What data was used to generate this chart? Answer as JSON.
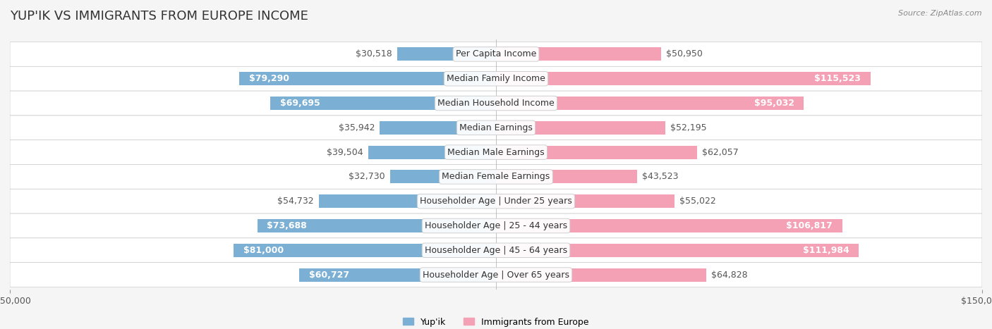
{
  "title": "YUP'IK VS IMMIGRANTS FROM EUROPE INCOME",
  "source": "Source: ZipAtlas.com",
  "categories": [
    "Per Capita Income",
    "Median Family Income",
    "Median Household Income",
    "Median Earnings",
    "Median Male Earnings",
    "Median Female Earnings",
    "Householder Age | Under 25 years",
    "Householder Age | 25 - 44 years",
    "Householder Age | 45 - 64 years",
    "Householder Age | Over 65 years"
  ],
  "yupik_values": [
    30518,
    79290,
    69695,
    35942,
    39504,
    32730,
    54732,
    73688,
    81000,
    60727
  ],
  "europe_values": [
    50950,
    115523,
    95032,
    52195,
    62057,
    43523,
    55022,
    106817,
    111984,
    64828
  ],
  "yupik_color": "#7bafd4",
  "europe_color": "#f4a0b5",
  "yupik_color_dark": "#5b9bc8",
  "europe_color_dark": "#f07090",
  "max_val": 150000,
  "background_color": "#f5f5f5",
  "row_bg_color": "#ffffff",
  "row_alt_bg_color": "#f0f0f0",
  "label_fontsize": 9,
  "value_fontsize": 9,
  "title_fontsize": 13
}
